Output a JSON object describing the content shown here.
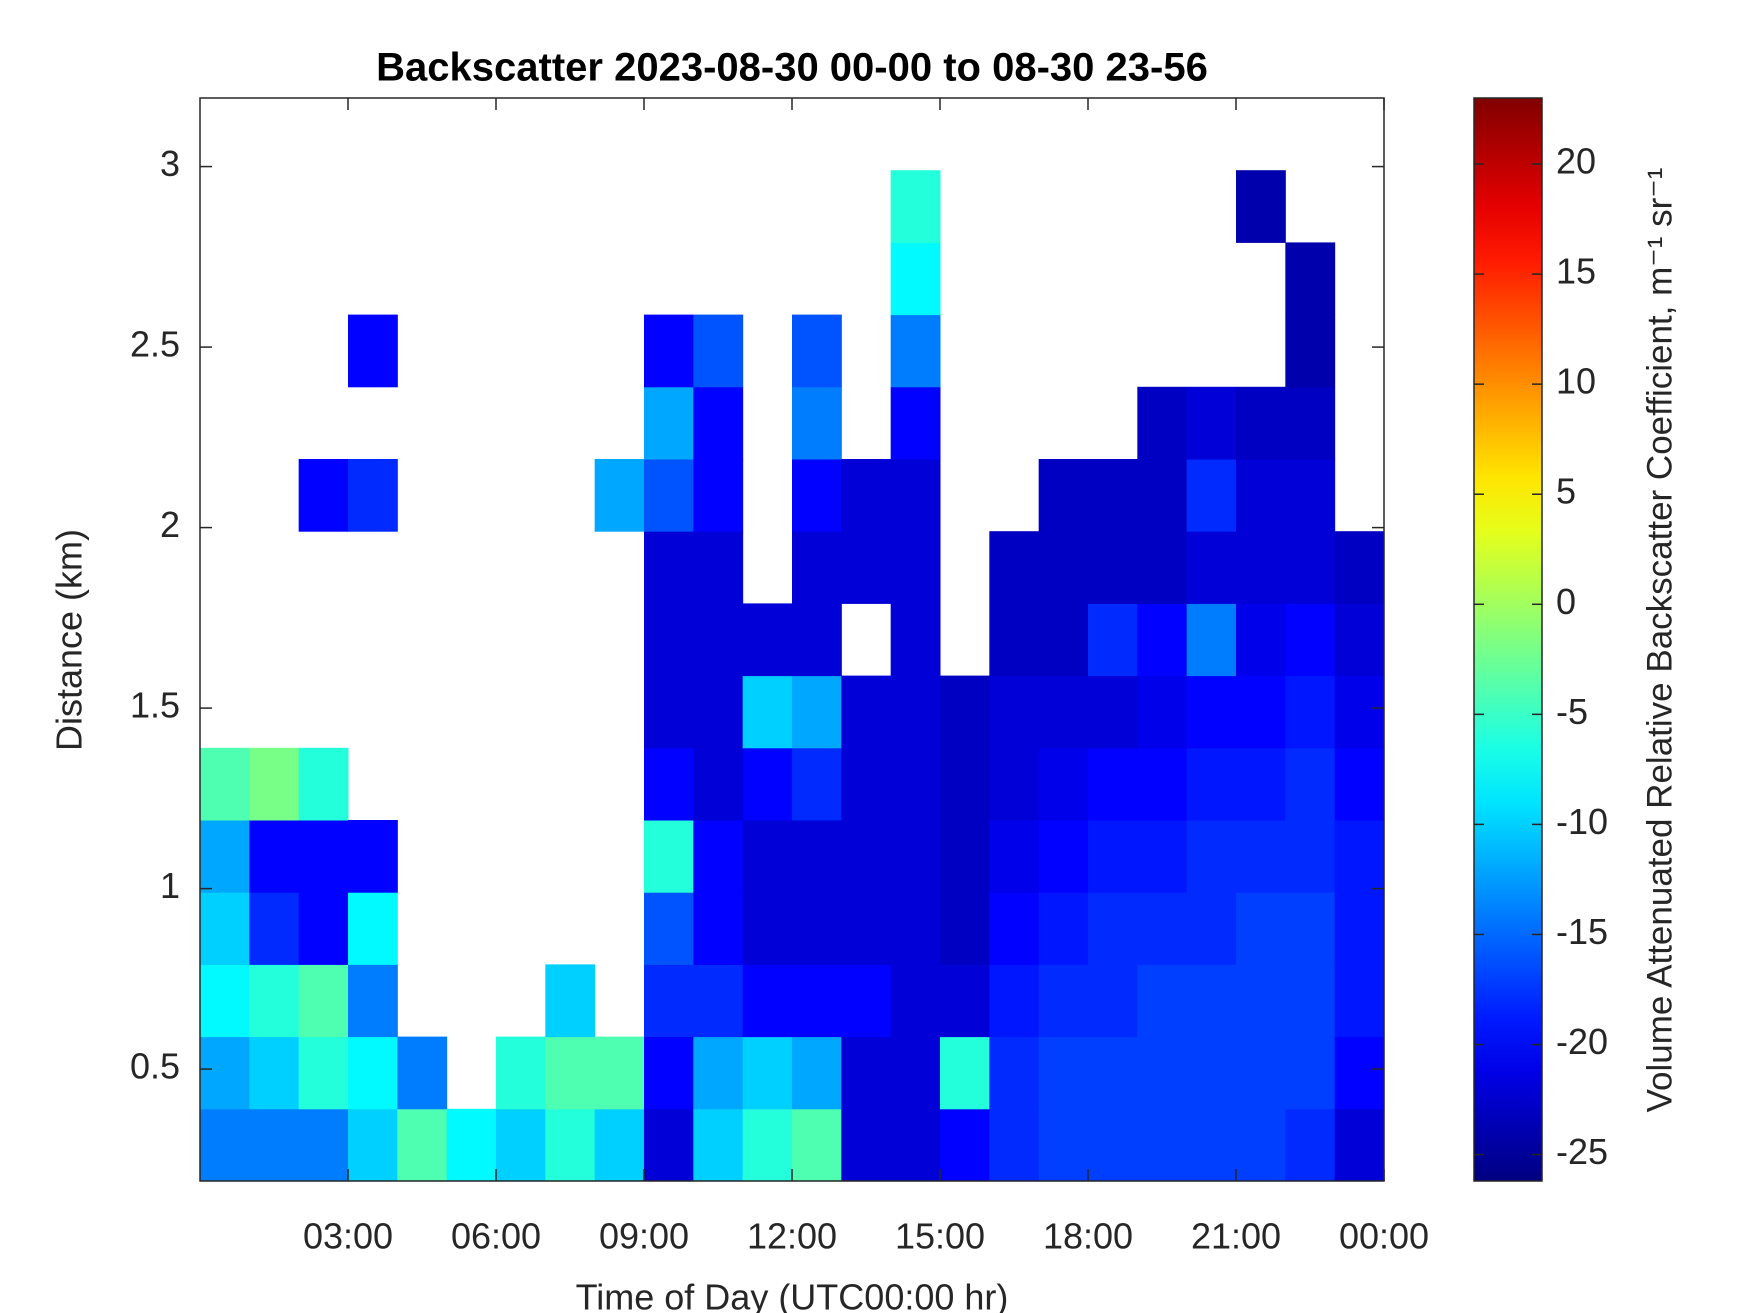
{
  "chart_data": {
    "type": "heatmap",
    "title": "Backscatter 2023-08-30 00-00 to 08-30 23-56",
    "x_label": "Time of Day (UTC00:00 hr)",
    "y_label": "Distance (km)",
    "colorbar_label": "Volume Attenuated Relative Backscatter Coefficient, m⁻¹ sr⁻¹",
    "colormap": "jet",
    "xbins": [
      0,
      1,
      2,
      3,
      4,
      5,
      6,
      7,
      8,
      9,
      10,
      11,
      12,
      13,
      14,
      15,
      16,
      17,
      18,
      19,
      20,
      21,
      22,
      23,
      24
    ],
    "ybins": [
      0.19,
      0.39,
      0.59,
      0.79,
      0.99,
      1.19,
      1.39,
      1.59,
      1.79,
      1.99,
      2.19,
      2.39,
      2.59,
      2.79,
      2.99,
      3.19
    ],
    "values": [
      [
        -14,
        -12,
        -8,
        -10,
        -12,
        -4,
        null,
        null,
        null,
        null,
        null,
        null,
        null,
        null,
        null
      ],
      [
        -14,
        -10,
        -6,
        -18,
        -20,
        -2,
        null,
        null,
        null,
        null,
        null,
        null,
        null,
        null,
        null
      ],
      [
        -14,
        -6,
        -4,
        -20,
        -20,
        -6,
        null,
        null,
        null,
        -20,
        null,
        null,
        null,
        null,
        null
      ],
      [
        -10,
        -8,
        -14,
        -8,
        -20,
        null,
        null,
        null,
        null,
        -18,
        null,
        -20,
        null,
        null,
        null
      ],
      [
        -4,
        -14,
        null,
        null,
        null,
        null,
        null,
        null,
        null,
        null,
        null,
        null,
        null,
        null,
        null
      ],
      [
        -8,
        null,
        null,
        null,
        null,
        null,
        null,
        null,
        null,
        null,
        null,
        null,
        null,
        null,
        null
      ],
      [
        -10,
        -6,
        null,
        null,
        null,
        null,
        null,
        null,
        null,
        null,
        null,
        null,
        null,
        null,
        null
      ],
      [
        -6,
        -4,
        -10,
        null,
        null,
        null,
        null,
        null,
        null,
        null,
        null,
        null,
        null,
        null,
        null
      ],
      [
        -10,
        -4,
        null,
        null,
        null,
        null,
        null,
        null,
        null,
        -12,
        null,
        null,
        null,
        null,
        null
      ],
      [
        -22,
        -20,
        -18,
        -16,
        -6,
        -20,
        -22,
        -22,
        -22,
        -16,
        -12,
        -20,
        null,
        null,
        null
      ],
      [
        -10,
        -12,
        -18,
        -20,
        -20,
        -22,
        -22,
        -22,
        -22,
        -20,
        -20,
        -16,
        null,
        null,
        null
      ],
      [
        -6,
        -10,
        -20,
        -22,
        -22,
        -20,
        -10,
        -22,
        null,
        null,
        null,
        null,
        null,
        null,
        null
      ],
      [
        -4,
        -12,
        -20,
        -22,
        -22,
        -18,
        -12,
        -22,
        -22,
        -20,
        -14,
        -16,
        null,
        null,
        null
      ],
      [
        -22,
        -22,
        -20,
        -22,
        -22,
        -22,
        -22,
        null,
        -22,
        -22,
        null,
        null,
        null,
        null,
        null
      ],
      [
        -22,
        -22,
        -22,
        -22,
        -22,
        -22,
        -22,
        -22,
        -22,
        -22,
        -20,
        -14,
        -8,
        -6,
        null
      ],
      [
        -20,
        -6,
        -22,
        -23,
        -23,
        -23,
        -23,
        null,
        null,
        null,
        null,
        null,
        null,
        null,
        null
      ],
      [
        -18,
        -18,
        -19,
        -20,
        -21,
        -22,
        -22,
        -23,
        -23,
        null,
        null,
        null,
        null,
        null,
        null
      ],
      [
        -17,
        -17,
        -18,
        -19,
        -20,
        -21,
        -22,
        -23,
        -23,
        -23,
        null,
        null,
        null,
        null,
        null
      ],
      [
        -17,
        -17,
        -18,
        -18,
        -19,
        -20,
        -22,
        -18,
        -23,
        -23,
        null,
        null,
        null,
        null,
        null
      ],
      [
        -17,
        -17,
        -17,
        -18,
        -19,
        -20,
        -21,
        -20,
        -23,
        -23,
        -23,
        null,
        null,
        null,
        null
      ],
      [
        -17,
        -17,
        -17,
        -18,
        -18,
        -19,
        -20,
        -14,
        -22,
        -18,
        -22,
        null,
        null,
        null,
        null
      ],
      [
        -17,
        -17,
        -17,
        -17,
        -18,
        -19,
        -20,
        -21,
        -22,
        -22,
        -23,
        null,
        null,
        -24,
        null
      ],
      [
        -18,
        -17,
        -17,
        -17,
        -18,
        -18,
        -19,
        -20,
        -22,
        -22,
        -23,
        -24,
        -24,
        null,
        null
      ],
      [
        -22,
        -20,
        -19,
        -19,
        -19,
        -20,
        -21,
        -22,
        -23,
        null,
        null,
        null,
        null,
        null,
        null
      ]
    ],
    "xlim": [
      0,
      24
    ],
    "xticks": [
      {
        "value": 3,
        "label": "03:00"
      },
      {
        "value": 6,
        "label": "06:00"
      },
      {
        "value": 9,
        "label": "09:00"
      },
      {
        "value": 12,
        "label": "12:00"
      },
      {
        "value": 15,
        "label": "15:00"
      },
      {
        "value": 18,
        "label": "18:00"
      },
      {
        "value": 21,
        "label": "21:00"
      },
      {
        "value": 24,
        "label": "00:00"
      }
    ],
    "ylim": [
      0.19,
      3.19
    ],
    "yticks": [
      0.5,
      1,
      1.5,
      2,
      2.5,
      3
    ],
    "clim": [
      -26.2,
      23
    ],
    "cticks": [
      -25,
      -20,
      -15,
      -10,
      -5,
      0,
      5,
      10,
      15,
      20
    ]
  }
}
